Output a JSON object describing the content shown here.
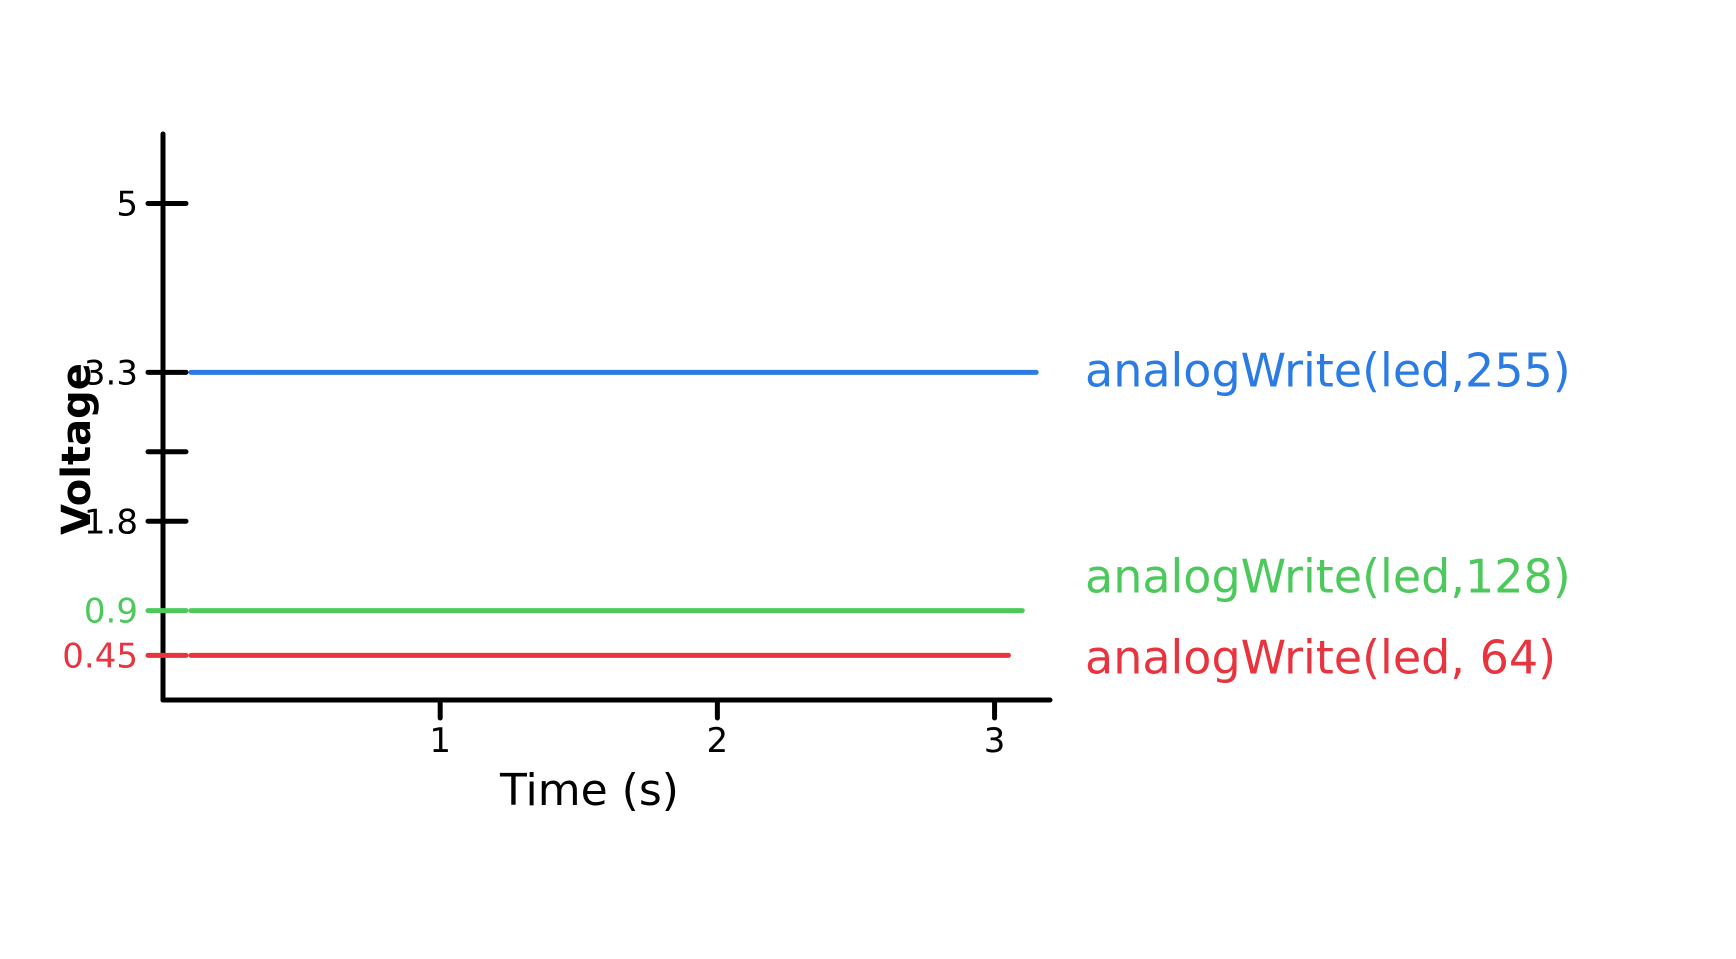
{
  "chart_data": {
    "type": "line",
    "xlabel": "Time (s)",
    "ylabel": "Voltage",
    "x_ticks": [
      "1",
      "2",
      "3"
    ],
    "y_ticks": [
      {
        "value": 5,
        "label": "5",
        "color": "#000000"
      },
      {
        "value": 3.3,
        "label": "3.3",
        "color": "#000000"
      },
      {
        "value": 2.5,
        "label": "",
        "color": "#000000"
      },
      {
        "value": 1.8,
        "label": "1.8",
        "color": "#000000"
      },
      {
        "value": 0.9,
        "label": "0.9",
        "color": "#4cc95a"
      },
      {
        "value": 0.45,
        "label": "0.45",
        "color": "#e8343f"
      }
    ],
    "xlim": [
      0,
      3.2
    ],
    "ylim": [
      0,
      5.7
    ],
    "series": [
      {
        "name": "analogWrite(led,255)",
        "color": "#2b7be4",
        "x": [
          0,
          3.15
        ],
        "y": [
          3.3,
          3.3
        ]
      },
      {
        "name": "analogWrite(led,128)",
        "color": "#4cc95a",
        "x": [
          0,
          3.1
        ],
        "y": [
          0.9,
          0.9
        ]
      },
      {
        "name": "analogWrite(led, 64)",
        "color": "#e8343f",
        "x": [
          0,
          3.05
        ],
        "y": [
          0.45,
          0.45
        ]
      }
    ]
  }
}
